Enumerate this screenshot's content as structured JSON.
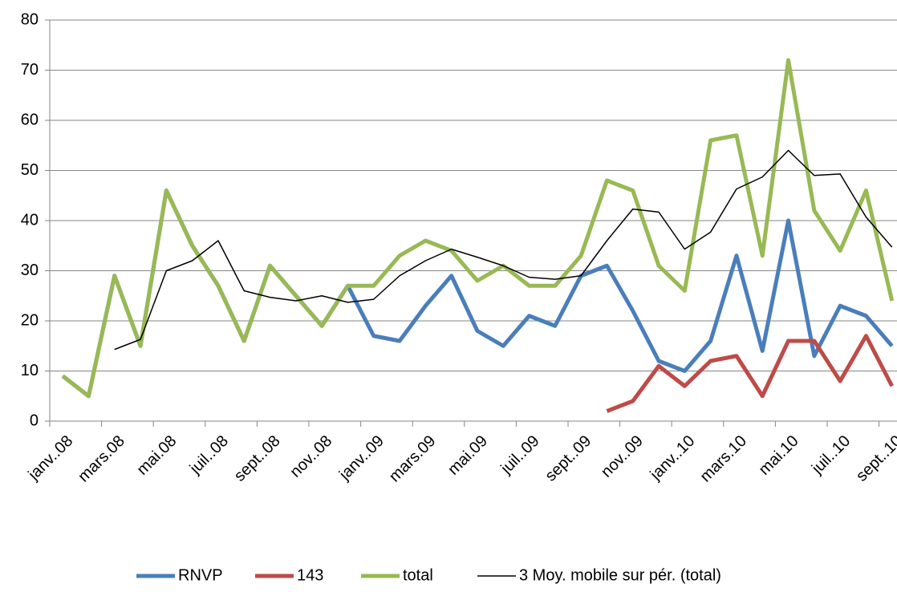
{
  "chart_data": {
    "type": "line",
    "categories": [
      "janv..08",
      null,
      "mars.08",
      null,
      "mai.08",
      null,
      "juil..08",
      null,
      "sept..08",
      null,
      "nov..08",
      null,
      "janv..09",
      null,
      "mars.09",
      null,
      "mai.09",
      null,
      "juil..09",
      null,
      "sept..09",
      null,
      "nov..09",
      null,
      "janv..10",
      null,
      "mars.10",
      null,
      "mai.10",
      null,
      "juil..10",
      null,
      "sept..10"
    ],
    "series": [
      {
        "name": "RNVP",
        "color": "#4a7ebb",
        "line_width": 5,
        "values": [
          9,
          5,
          29,
          15,
          46,
          35,
          27,
          16,
          31,
          25,
          19,
          27,
          17,
          16,
          23,
          29,
          18,
          15,
          21,
          19,
          29,
          31,
          22,
          12,
          10,
          16,
          33,
          14,
          40,
          13,
          23,
          21,
          15
        ]
      },
      {
        "name": "143",
        "color": "#be4b48",
        "line_width": 5,
        "values": [
          null,
          null,
          null,
          null,
          null,
          null,
          null,
          null,
          null,
          null,
          null,
          null,
          null,
          null,
          null,
          null,
          null,
          null,
          null,
          null,
          null,
          2,
          4,
          11,
          7,
          12,
          13,
          5,
          16,
          16,
          8,
          17,
          7
        ]
      },
      {
        "name": "total",
        "color": "#98b954",
        "line_width": 5,
        "values": [
          9,
          5,
          29,
          15,
          46,
          35,
          27,
          16,
          31,
          25,
          19,
          27,
          27,
          33,
          36,
          34,
          28,
          31,
          27,
          27,
          33,
          48,
          46,
          31,
          26,
          56,
          57,
          33,
          72,
          42,
          34,
          46,
          24
        ]
      },
      {
        "name": "3 Moy. mobile sur pér. (total)",
        "color": "#000000",
        "line_width": 1.5,
        "values": [
          null,
          null,
          14.3,
          16.3,
          30,
          32,
          36,
          26,
          24.7,
          24,
          25,
          23.7,
          24.3,
          29,
          32,
          34.3,
          32.7,
          31,
          28.7,
          28.3,
          29,
          36,
          42.3,
          41.7,
          34.3,
          37.7,
          46.3,
          48.7,
          54,
          49,
          49.3,
          40.7,
          34.7
        ]
      }
    ],
    "ylim": [
      0,
      80
    ],
    "yticks": [
      0,
      10,
      20,
      30,
      40,
      50,
      60,
      70,
      80
    ],
    "grid": true,
    "legend": "bottom"
  }
}
